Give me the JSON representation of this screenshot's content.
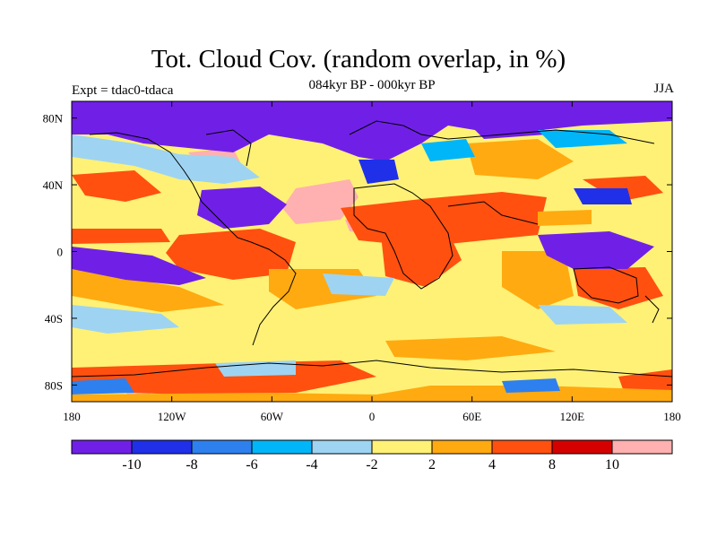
{
  "title": "Tot. Cloud Cov. (random overlap, in %)",
  "subtitle": "084kyr BP - 000kyr BP",
  "left_string": "Expt = tdac0-tdaca",
  "right_string": "JJA",
  "map": {
    "projection": "cylindrical equidistant",
    "lon_range": [
      -180,
      180
    ],
    "lat_range": [
      -90,
      90
    ],
    "x_ticks": [
      {
        "value": -180,
        "label": "180"
      },
      {
        "value": -120,
        "label": "120W"
      },
      {
        "value": -60,
        "label": "60W"
      },
      {
        "value": 0,
        "label": "0"
      },
      {
        "value": 60,
        "label": "60E"
      },
      {
        "value": 120,
        "label": "120E"
      },
      {
        "value": 180,
        "label": "180"
      }
    ],
    "y_ticks": [
      {
        "value": 80,
        "label": "80N"
      },
      {
        "value": 40,
        "label": "40N"
      },
      {
        "value": 0,
        "label": "0"
      },
      {
        "value": -40,
        "label": "40S"
      },
      {
        "value": -80,
        "label": "80S"
      }
    ],
    "background_color": "#fff176"
  },
  "colorbar": {
    "levels": [
      "-10",
      "-8",
      "-6",
      "-4",
      "-2",
      "2",
      "4",
      "8",
      "10"
    ],
    "colors": [
      "#7020e6",
      "#2030e8",
      "#2e80ee",
      "#00b6f8",
      "#9ed4f2",
      "#fff176",
      "#ffaa10",
      "#ff5010",
      "#d40000",
      "#ffb0b0"
    ]
  }
}
